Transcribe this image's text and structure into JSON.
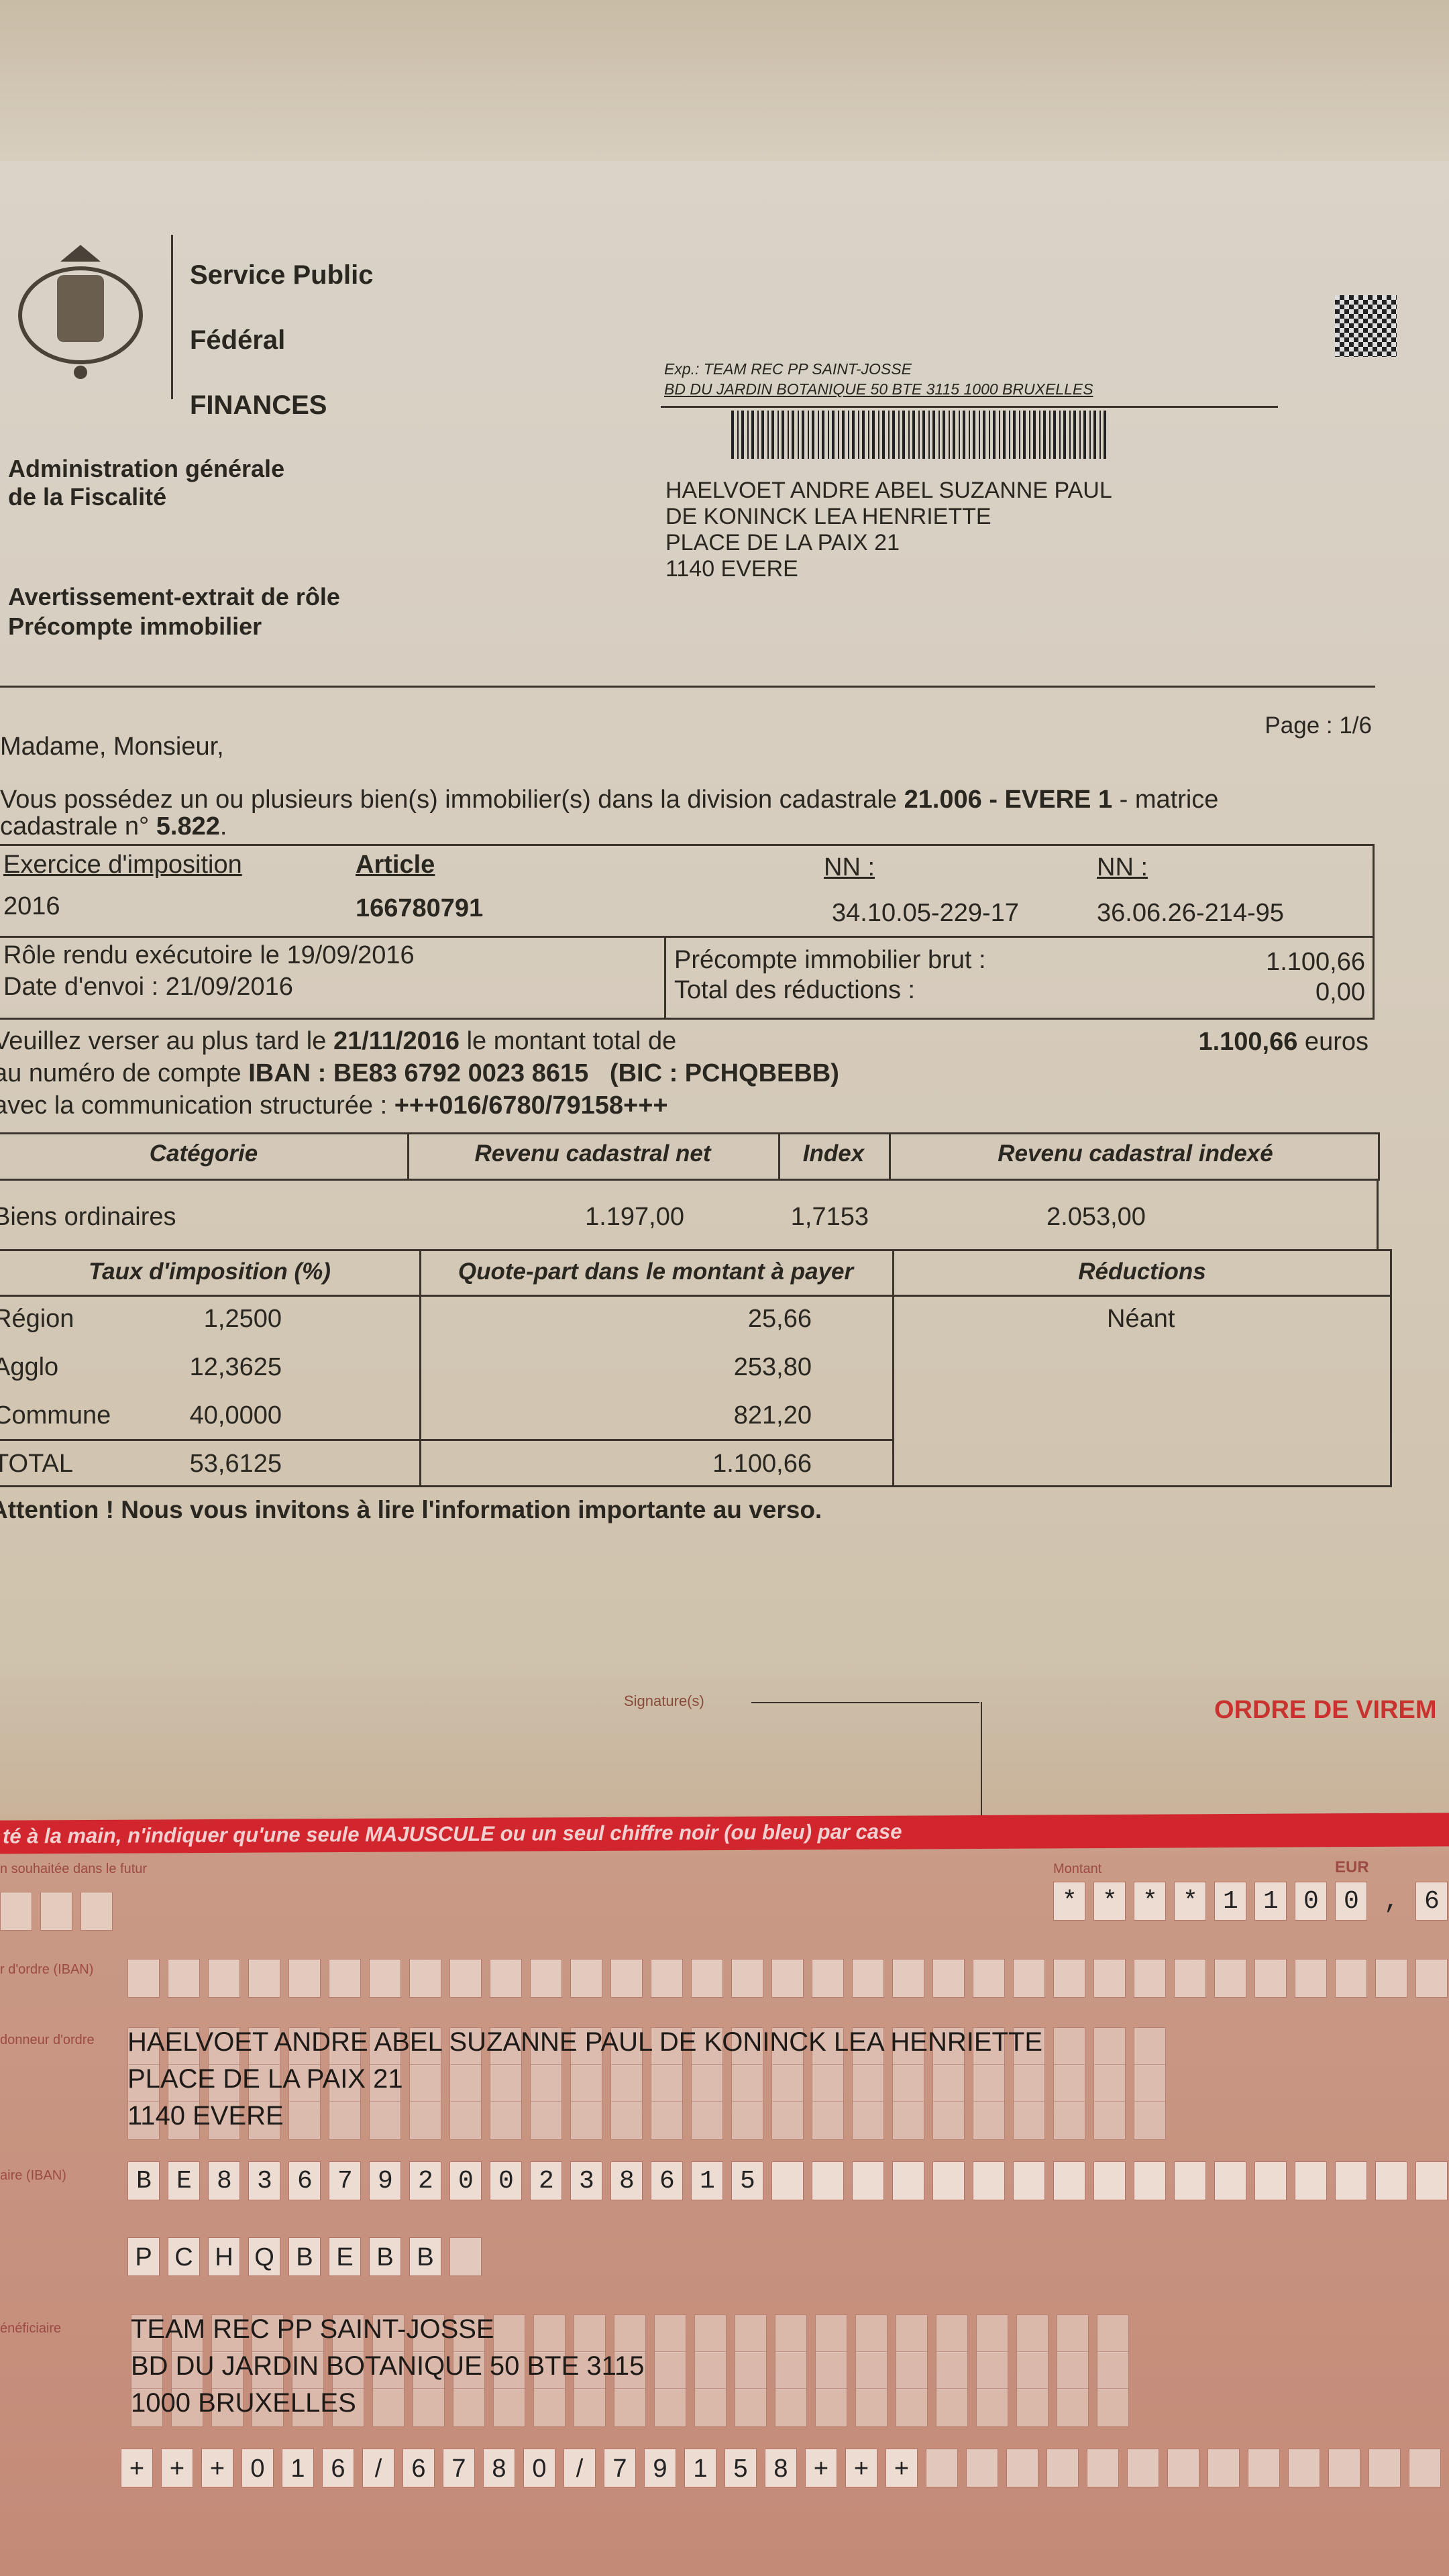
{
  "header": {
    "agency": [
      "Service Public",
      "Fédéral",
      "FINANCES"
    ],
    "administration": [
      "Administration générale",
      "de la Fiscalité"
    ],
    "doc_type": [
      "Avertissement-extrait de rôle",
      "Précompte immobilier"
    ]
  },
  "sender": {
    "line1": "Exp.: TEAM REC PP SAINT-JOSSE",
    "line2": "BD DU JARDIN BOTANIQUE 50 BTE 3115  1000 BRUXELLES"
  },
  "recipient": [
    "HAELVOET ANDRE ABEL SUZANNE PAUL",
    "DE KONINCK LEA HENRIETTE",
    "PLACE DE LA PAIX 21",
    "1140 EVERE"
  ],
  "page": "Page : 1/6",
  "greeting": "Madame, Monsieur,",
  "intro": {
    "text1": "Vous possédez un ou plusieurs bien(s) immobilier(s)  dans la division cadastrale ",
    "division": "21.006 - EVERE 1",
    "text2": " - matrice",
    "text3": "cadastrale n° ",
    "matrice": "5.822",
    "text4": "."
  },
  "info_table": {
    "h_exercice": "Exercice d'imposition",
    "h_article": "Article",
    "h_nn1": "NN :",
    "h_nn2": "NN :",
    "exercice": "2016",
    "article": "166780791",
    "nn1": "34.10.05-229-17",
    "nn2": "36.06.26-214-95",
    "role": "Rôle rendu exécutoire le 19/09/2016",
    "envoi": "Date d'envoi : 21/09/2016",
    "brut_label": "Précompte immobilier brut :",
    "brut": "1.100,66",
    "red_label": "Total des réductions :",
    "red": "0,00"
  },
  "payment": {
    "l1a": "Veuillez verser au plus tard le ",
    "date": "21/11/2016",
    "l1b": " le montant total de",
    "total": "1.100,66",
    "euros": " euros",
    "l2a": "au numéro de compte ",
    "iban": "IBAN : BE83 6792 0023 8615",
    "bic": "(BIC : PCHQBEBB)",
    "l3a": "avec la communication structurée : ",
    "comm": "+++016/6780/79158+++"
  },
  "cad_table": {
    "headers": [
      "Catégorie",
      "Revenu cadastral net",
      "Index",
      "Revenu cadastral indexé"
    ],
    "row": [
      "Biens ordinaires",
      "1.197,00",
      "1,7153",
      "2.053,00"
    ]
  },
  "tax_table": {
    "headers": [
      "Taux d'imposition (%)",
      "Quote-part dans le montant à payer",
      "Réductions"
    ],
    "rows": [
      [
        "Région",
        "1,2500",
        "25,66"
      ],
      [
        "Agglo",
        "12,3625",
        "253,80"
      ],
      [
        "Commune",
        "40,0000",
        "821,20"
      ],
      [
        "TOTAL",
        "53,6125",
        "1.100,66"
      ]
    ],
    "reductions": "Néant"
  },
  "attention": "Attention !  Nous vous invitons à lire l'information importante au verso.",
  "slip": {
    "signature": "Signature(s)",
    "title": "ORDRE DE VIREM",
    "band": "té à la main, n'indiquer qu'une seule MAJUSCULE ou un seul chiffre noir (ou bleu) par case",
    "lbl_date": "n souhaitée dans le futur",
    "lbl_montant": "Montant",
    "lbl_eur": "EUR",
    "amount": "****1100,6",
    "lbl_iban_donneur": "r d'ordre (IBAN)",
    "lbl_donneur": "donneur d'ordre",
    "donneur": [
      "HAELVOET ANDRE ABEL SUZANNE PAUL DE KONINCK LEA HENRIETTE",
      "PLACE DE LA PAIX 21",
      "1140 EVERE"
    ],
    "lbl_iban_benef": "aire (IBAN)",
    "iban": "BE83679200238615",
    "bic": "PCHQBEBB",
    "lbl_benef": "énéficiaire",
    "beneficiaire": [
      "TEAM REC PP SAINT-JOSSE",
      "BD DU JARDIN BOTANIQUE  50 BTE 3115",
      "1000 BRUXELLES"
    ],
    "comm": "+++016/6780/79158+++"
  },
  "colors": {
    "red_band": "#d2262e",
    "slip_pink": "#c48a78",
    "paper": "#d6ccbd"
  }
}
